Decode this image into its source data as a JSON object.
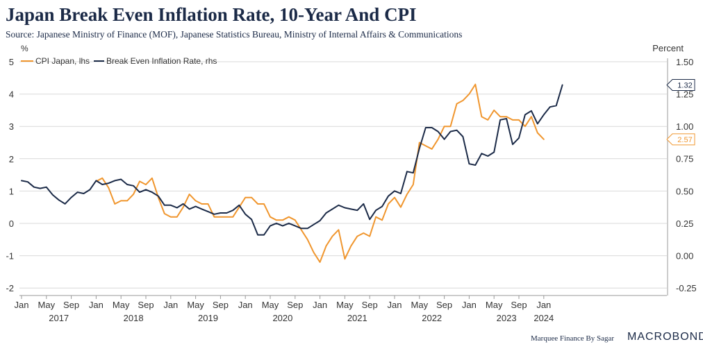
{
  "header": {
    "title": "Japan Break Even Inflation Rate, 10-Year And CPI",
    "subtitle": "Source: Japanese Ministry of Finance (MOF), Japanese Statistics Bureau, Ministry of Internal Affairs & Communications"
  },
  "footer": {
    "credit": "Marquee Finance By Sagar",
    "logo": "MACROBOND"
  },
  "colors": {
    "cpi": "#f0962e",
    "bei": "#1b2a47",
    "grid": "#d9d9d9",
    "axis": "#555555",
    "text": "#333333"
  },
  "chart_data": {
    "type": "line",
    "title": "Japan Break Even Inflation Rate, 10-Year And CPI",
    "ylabel_left": "%",
    "ylabel_right": "Percent",
    "ylim_left": [
      -2,
      5
    ],
    "ylim_right": [
      -0.25,
      1.5
    ],
    "y_ticks_left": [
      -2,
      -1,
      0,
      1,
      2,
      3,
      4,
      5
    ],
    "y_ticks_right": [
      "-0.25",
      "0.00",
      "0.25",
      "0.50",
      "0.75",
      "1.00",
      "1.25",
      "1.50"
    ],
    "x_start": "2017-01",
    "x_tick_months": [
      "Jan",
      "May",
      "Sep",
      "Jan",
      "May",
      "Sep",
      "Jan",
      "May",
      "Sep",
      "Jan",
      "May",
      "Sep",
      "Jan",
      "May",
      "Sep",
      "Jan",
      "May",
      "Sep",
      "Jan",
      "May",
      "Sep",
      "Jan"
    ],
    "x_tick_years": [
      "2017",
      "2018",
      "2019",
      "2020",
      "2021",
      "2022",
      "2023",
      "2024"
    ],
    "legend_position": "top-left",
    "grid": true,
    "series": [
      {
        "name": "CPI Japan, lhs",
        "axis": "left",
        "start_index": 12,
        "values": [
          1.3,
          1.4,
          1.1,
          0.6,
          0.7,
          0.7,
          0.9,
          1.3,
          1.2,
          1.4,
          0.8,
          0.3,
          0.2,
          0.2,
          0.5,
          0.9,
          0.7,
          0.6,
          0.6,
          0.2,
          0.2,
          0.2,
          0.2,
          0.5,
          0.8,
          0.8,
          0.6,
          0.6,
          0.2,
          0.1,
          0.1,
          0.2,
          0.1,
          -0.2,
          -0.5,
          -0.9,
          -1.2,
          -0.7,
          -0.4,
          -0.2,
          -1.1,
          -0.7,
          -0.4,
          -0.3,
          -0.4,
          0.2,
          0.1,
          0.6,
          0.8,
          0.5,
          0.9,
          1.2,
          2.5,
          2.4,
          2.3,
          2.6,
          3.0,
          3.0,
          3.7,
          3.8,
          4.0,
          4.3,
          3.3,
          3.2,
          3.5,
          3.3,
          3.3,
          3.2,
          3.2,
          3.0,
          3.3,
          2.8,
          2.6
        ],
        "last_label": "2.57"
      },
      {
        "name": "Break Even Inflation Rate, rhs",
        "axis": "right",
        "start_index": 0,
        "values": [
          0.58,
          0.57,
          0.53,
          0.52,
          0.53,
          0.47,
          0.43,
          0.4,
          0.45,
          0.49,
          0.48,
          0.51,
          0.58,
          0.55,
          0.56,
          0.58,
          0.59,
          0.55,
          0.54,
          0.49,
          0.51,
          0.49,
          0.46,
          0.39,
          0.39,
          0.37,
          0.4,
          0.36,
          0.38,
          0.36,
          0.34,
          0.32,
          0.33,
          0.33,
          0.35,
          0.39,
          0.32,
          0.28,
          0.16,
          0.16,
          0.23,
          0.25,
          0.23,
          0.25,
          0.23,
          0.21,
          0.21,
          0.24,
          0.27,
          0.33,
          0.36,
          0.39,
          0.37,
          0.36,
          0.35,
          0.4,
          0.28,
          0.35,
          0.38,
          0.46,
          0.5,
          0.48,
          0.65,
          0.64,
          0.83,
          0.99,
          0.99,
          0.96,
          0.9,
          0.96,
          0.97,
          0.92,
          0.71,
          0.7,
          0.79,
          0.77,
          0.8,
          1.05,
          1.06,
          0.86,
          0.91,
          1.09,
          1.12,
          1.02,
          1.09,
          1.15,
          1.16,
          1.32
        ],
        "last_label": "1.32"
      }
    ]
  }
}
